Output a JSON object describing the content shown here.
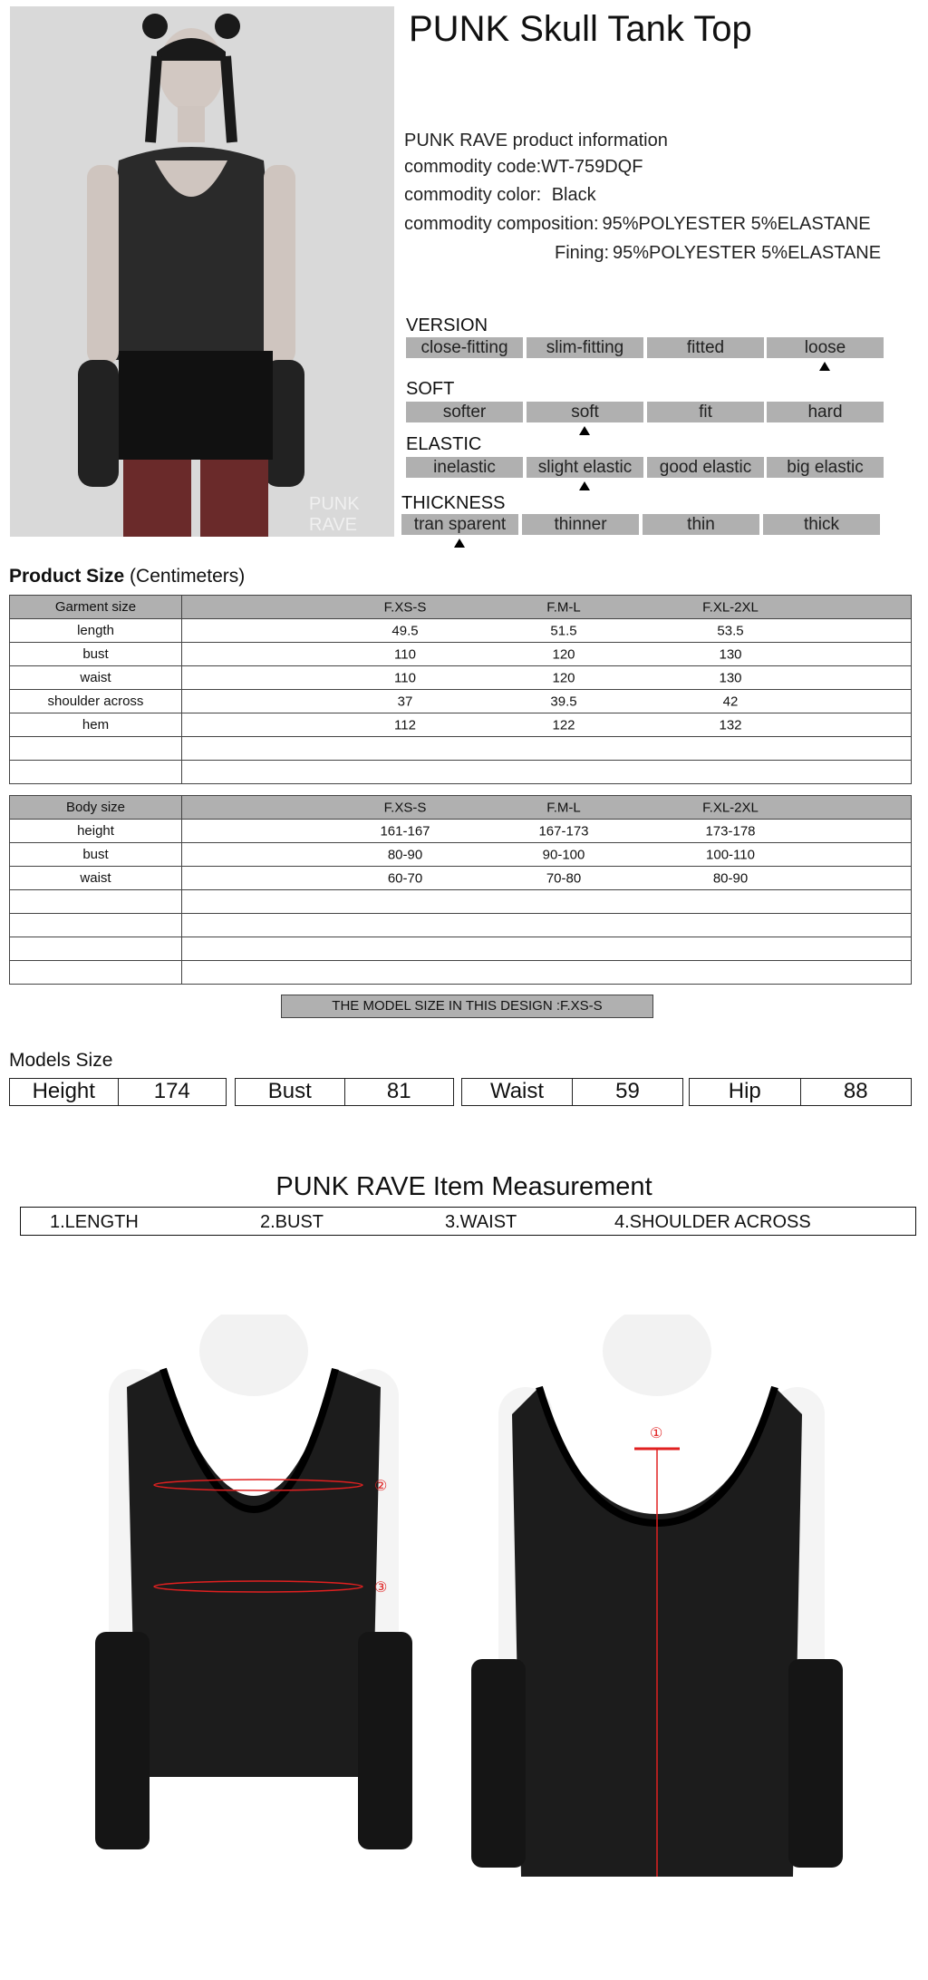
{
  "product": {
    "title": "PUNK Skull Tank Top",
    "watermark": "PUNK RAVE"
  },
  "info": {
    "heading": "PUNK RAVE product information",
    "code_label": "commodity code:",
    "code": "WT-759DQF",
    "color_label": "commodity color:",
    "color": "Black",
    "composition_label": "commodity composition:",
    "composition": "95%POLYESTER 5%ELASTANE",
    "fining_label": "Fining:",
    "fining": "95%POLYESTER 5%ELASTANE"
  },
  "attributes": [
    {
      "label": "VERSION",
      "options": [
        "close-fitting",
        "slim-fitting",
        "fitted",
        "loose"
      ],
      "selected": 3
    },
    {
      "label": "SOFT",
      "options": [
        "softer",
        "soft",
        "fit",
        "hard"
      ],
      "selected": 1
    },
    {
      "label": "ELASTIC",
      "options": [
        "inelastic",
        "slight elastic",
        "good elastic",
        "big elastic"
      ],
      "selected": 1
    },
    {
      "label": "THICKNESS",
      "options": [
        "tran sparent",
        "thinner",
        "thin",
        "thick"
      ],
      "selected": 0
    }
  ],
  "product_size": {
    "title": "Product Size",
    "unit": "(Centimeters)",
    "garment": {
      "header": [
        "Garment size",
        "F.XS-S",
        "F.M-L",
        "F.XL-2XL"
      ],
      "rows": [
        [
          "length",
          "49.5",
          "51.5",
          "53.5"
        ],
        [
          "bust",
          "110",
          "120",
          "130"
        ],
        [
          "waist",
          "110",
          "120",
          "130"
        ],
        [
          "shoulder across",
          "37",
          "39.5",
          "42"
        ],
        [
          "hem",
          "112",
          "122",
          "132"
        ],
        [
          "",
          "",
          "",
          ""
        ],
        [
          "",
          "",
          "",
          ""
        ]
      ]
    },
    "body": {
      "header": [
        "Body size",
        "F.XS-S",
        "F.M-L",
        "F.XL-2XL"
      ],
      "rows": [
        [
          "height",
          "161-167",
          "167-173",
          "173-178"
        ],
        [
          "bust",
          "80-90",
          "90-100",
          "100-110"
        ],
        [
          "waist",
          "60-70",
          "70-80",
          "80-90"
        ],
        [
          "",
          "",
          "",
          ""
        ],
        [
          "",
          "",
          "",
          ""
        ],
        [
          "",
          "",
          "",
          ""
        ],
        [
          "",
          "",
          "",
          ""
        ]
      ]
    },
    "model_size_note": "THE MODEL SIZE IN THIS DESIGN :F.XS-S"
  },
  "models_size": {
    "title": "Models Size",
    "items": [
      [
        "Height",
        "174"
      ],
      [
        "Bust",
        "81"
      ],
      [
        "Waist",
        "59"
      ],
      [
        "Hip",
        "88"
      ]
    ]
  },
  "measurement": {
    "title": "PUNK RAVE Item  Measurement",
    "items": [
      "1.LENGTH",
      "2.BUST",
      "3.WAIST",
      "4.SHOULDER ACROSS"
    ],
    "markers": [
      "①",
      "②",
      "③"
    ],
    "marker_color": "#e02020"
  },
  "colors": {
    "bar_gray": "#b0b0b0"
  }
}
